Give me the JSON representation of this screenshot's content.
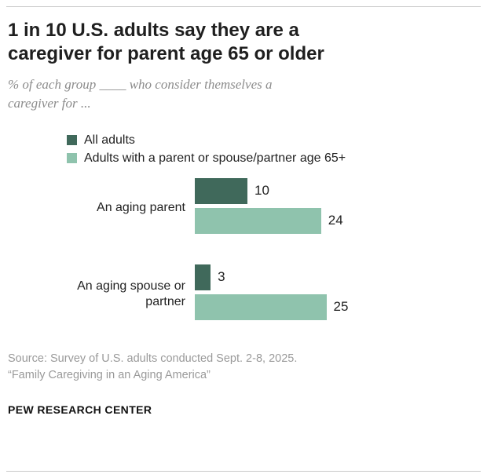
{
  "header": {
    "title_line1": "1 in 10 U.S. adults say they are a",
    "title_line2": "caregiver for parent age 65 or older",
    "subtitle_line1": "% of each group ____ who consider themselves a",
    "subtitle_line2": "caregiver for ..."
  },
  "chart_data": {
    "type": "bar",
    "orientation": "horizontal",
    "title": "1 in 10 U.S. adults say they are a caregiver for parent age 65 or older",
    "subtitle": "% of each group ____ who consider themselves a caregiver for ...",
    "categories": [
      "An aging parent",
      "An aging spouse or partner"
    ],
    "series": [
      {
        "name": "All adults",
        "color": "#40695b",
        "values": [
          10,
          3
        ]
      },
      {
        "name": "Adults with a parent or spouse/partner age 65+",
        "color": "#8fc3ad",
        "values": [
          24,
          25
        ]
      }
    ],
    "xlim": [
      0,
      30
    ],
    "grid": false,
    "legend_position": "top",
    "value_labels": true
  },
  "source": {
    "line1": "Source: Survey of U.S. adults conducted Sept. 2-8, 2025.",
    "line2": "“Family Caregiving in an Aging America”"
  },
  "footer": "PEW RESEARCH CENTER"
}
